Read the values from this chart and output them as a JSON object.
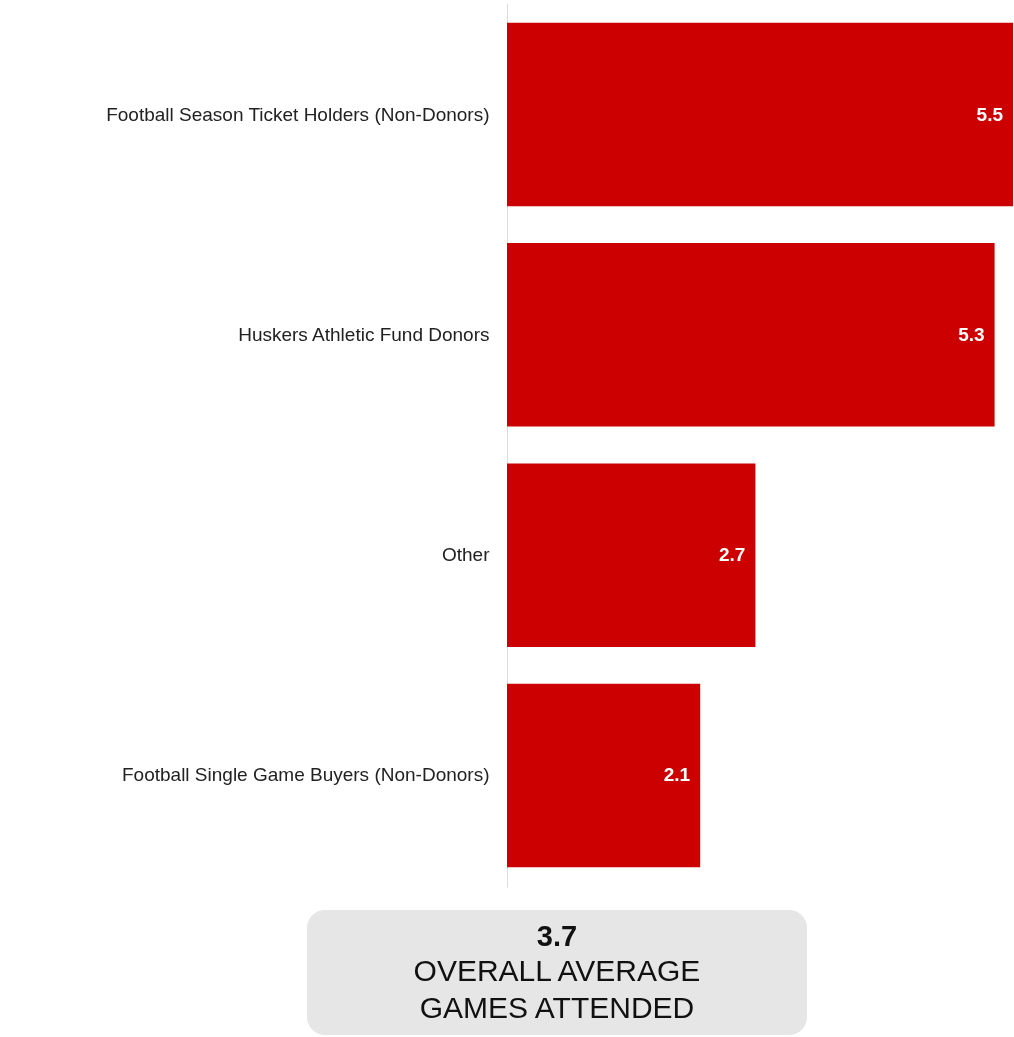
{
  "chart_data": {
    "type": "bar",
    "orientation": "horizontal",
    "categories": [
      "Football Season Ticket Holders (Non-Donors)",
      "Huskers Athletic Fund Donors",
      "Other",
      "Football Single Game Buyers (Non-Donors)"
    ],
    "values": [
      5.5,
      5.3,
      2.7,
      2.1
    ],
    "color": "#cc0000",
    "data_labels": true,
    "annotations": [
      "3.7",
      "OVERALL AVERAGE GAMES ATTENDED"
    ]
  }
}
